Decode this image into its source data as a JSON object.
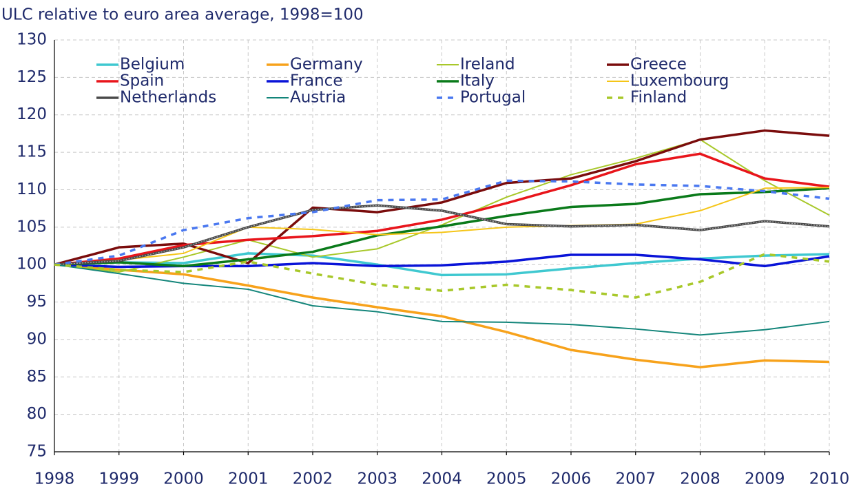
{
  "chart_data": {
    "type": "line",
    "title": "ULC relative to euro area average, 1998=100",
    "categories": [
      "1998",
      "1999",
      "2000",
      "2001",
      "2002",
      "2003",
      "2004",
      "2005",
      "2006",
      "2007",
      "2008",
      "2009",
      "2010"
    ],
    "ylim": [
      75,
      130
    ],
    "yticks": [
      75,
      80,
      85,
      90,
      95,
      100,
      105,
      110,
      115,
      120,
      125,
      130
    ],
    "grid": true,
    "series": [
      {
        "name": "Belgium",
        "color": "#3fc8d0",
        "style": "thick",
        "values": [
          100,
          100.3,
          100.2,
          101.5,
          101.2,
          100,
          98.6,
          98.7,
          99.5,
          100.2,
          100.8,
          101.2,
          101.4
        ]
      },
      {
        "name": "Germany",
        "color": "#f7a21b",
        "style": "thick",
        "values": [
          100,
          99.3,
          98.7,
          97.2,
          95.6,
          94.3,
          93.1,
          91.0,
          88.6,
          87.3,
          86.3,
          87.2,
          87.0
        ]
      },
      {
        "name": "Ireland",
        "color": "#a8c82a",
        "style": "solid",
        "values": [
          100,
          99.0,
          101.0,
          103.3,
          101.0,
          102.1,
          105.3,
          109.0,
          112.0,
          114.2,
          116.7,
          111.2,
          106.6
        ]
      },
      {
        "name": "Greece",
        "color": "#7a0c0c",
        "style": "thick",
        "values": [
          100,
          102.3,
          102.8,
          100.2,
          107.6,
          107.0,
          108.3,
          110.9,
          111.5,
          113.8,
          116.7,
          117.9,
          117.2
        ]
      },
      {
        "name": "Spain",
        "color": "#e8151b",
        "style": "thick",
        "values": [
          100,
          100.8,
          102.6,
          103.3,
          103.8,
          104.5,
          106.0,
          108.2,
          110.6,
          113.4,
          114.8,
          111.5,
          110.4
        ]
      },
      {
        "name": "France",
        "color": "#0a14d8",
        "style": "thick",
        "values": [
          100,
          99.7,
          99.8,
          99.8,
          100.2,
          99.8,
          99.9,
          100.4,
          101.3,
          101.3,
          100.7,
          99.8,
          101.1
        ]
      },
      {
        "name": "Italy",
        "color": "#0a7a1a",
        "style": "thick",
        "values": [
          100,
          100.3,
          99.8,
          100.7,
          101.7,
          103.9,
          105.1,
          106.5,
          107.7,
          108.1,
          109.4,
          109.7,
          110.2
        ]
      },
      {
        "name": "Luxembourg",
        "color": "#f5c518",
        "style": "solid",
        "values": [
          100,
          100.6,
          101.5,
          105.0,
          104.7,
          104.0,
          104.3,
          105.0,
          105.2,
          105.4,
          107.2,
          110.2,
          110.3
        ]
      },
      {
        "name": "Netherlands",
        "color": "#4a4a4a",
        "style": "thick",
        "values": [
          100,
          100.5,
          102.3,
          105.0,
          107.3,
          107.9,
          107.2,
          105.4,
          105.1,
          105.3,
          104.6,
          105.8,
          105.1
        ]
      },
      {
        "name": "Austria",
        "color": "#13857a",
        "style": "solid",
        "values": [
          100,
          98.8,
          97.5,
          96.7,
          94.5,
          93.7,
          92.4,
          92.3,
          92.0,
          91.4,
          90.6,
          91.3,
          92.4
        ]
      },
      {
        "name": "Portugal",
        "color": "#4a78f0",
        "style": "dashed",
        "values": [
          100,
          101.2,
          104.6,
          106.2,
          107.0,
          108.6,
          108.7,
          111.2,
          111.1,
          110.7,
          110.5,
          109.8,
          108.8
        ]
      },
      {
        "name": "Finland",
        "color": "#a8c82a",
        "style": "dashed",
        "values": [
          100,
          99.3,
          99.0,
          100.4,
          98.8,
          97.3,
          96.5,
          97.3,
          96.6,
          95.6,
          97.7,
          101.4,
          100.4
        ]
      }
    ]
  }
}
